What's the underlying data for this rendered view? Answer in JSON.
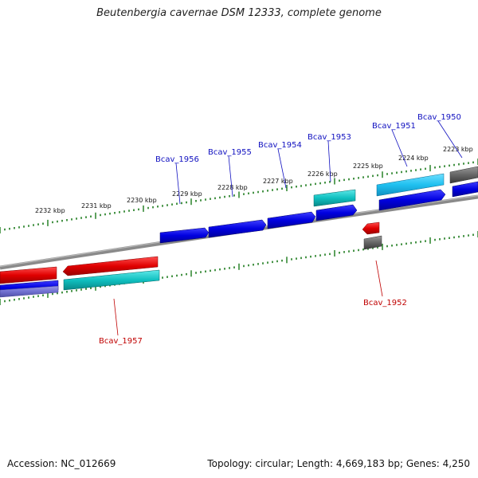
{
  "title": "Beutenbergia cavernae DSM 12333, complete genome",
  "footer": {
    "accession": "Accession: NC_012669",
    "summary": "Topology: circular; Length: 4,669,183 bp; Genes: 4,250"
  },
  "colors": {
    "backbone": "#7a7a7a",
    "tick": "#1a7a1a",
    "forward_label": "#1010c0",
    "reverse_label": "#c00000",
    "cds_blue": "#0a0ae0",
    "cds_red": "#e00000",
    "cds_cyan": "#10c8c8",
    "cds_lightblue": "#20c0f0",
    "gray": "#666666"
  },
  "kbp_labels": [
    "2232 kbp",
    "2231 kbp",
    "2230 kbp",
    "2229 kbp",
    "2228 kbp",
    "2227 kbp",
    "2226 kbp",
    "2225 kbp",
    "2224 kbp",
    "2223 kbp"
  ],
  "gene_labels": {
    "forward": [
      "Bcav_1956",
      "Bcav_1955",
      "Bcav_1954",
      "Bcav_1953",
      "Bcav_1951",
      "Bcav_1950"
    ],
    "reverse": [
      "Bcav_1957",
      "Bcav_1952"
    ]
  }
}
